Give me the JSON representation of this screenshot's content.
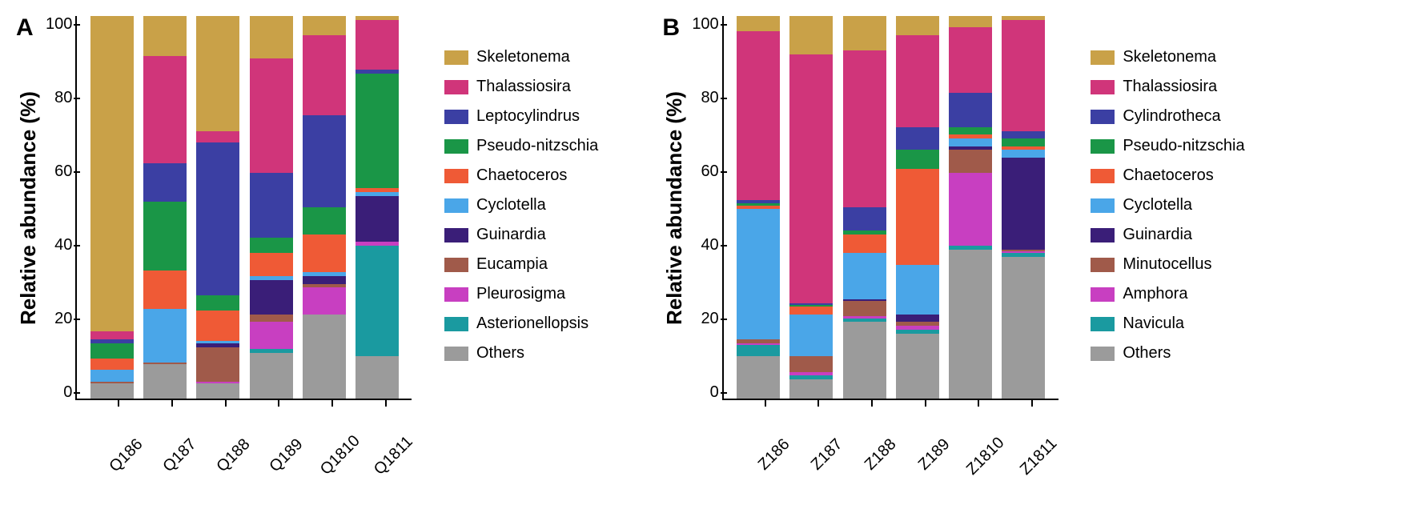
{
  "colors": {
    "Skeletonema": "#c9a148",
    "Thalassiosira": "#d0357a",
    "Leptocylindrus": "#3b3fa3",
    "Pseudo-nitzschia": "#1a9647",
    "Chaetoceros": "#ef5a36",
    "Cyclotella": "#4aa6e8",
    "Guinardia": "#3a1e78",
    "Eucampia": "#a05a4a",
    "Pleurosigma": "#c83fc1",
    "Asterionellopsis": "#1a9aa0",
    "Cylindrotheca": "#3b3fa3",
    "Minutocellus": "#a05a4a",
    "Amphora": "#c83fc1",
    "Navicula": "#1a9aa0",
    "Others": "#9b9b9b"
  },
  "y_label": "Relative abundance (%)",
  "y_ticks": [
    0,
    20,
    40,
    60,
    80,
    100
  ],
  "panels": {
    "A": {
      "letter": "A",
      "categories": [
        "Q186",
        "Q187",
        "Q188",
        "Q189",
        "Q1810",
        "Q1811"
      ],
      "legend_order": [
        "Skeletonema",
        "Thalassiosira",
        "Leptocylindrus",
        "Pseudo-nitzschia",
        "Chaetoceros",
        "Cyclotella",
        "Guinardia",
        "Eucampia",
        "Pleurosigma",
        "Asterionellopsis",
        "Others"
      ],
      "stack_order": [
        "Others",
        "Asterionellopsis",
        "Pleurosigma",
        "Eucampia",
        "Guinardia",
        "Cyclotella",
        "Chaetoceros",
        "Pseudo-nitzschia",
        "Leptocylindrus",
        "Thalassiosira",
        "Skeletonema"
      ],
      "data": {
        "Q186": {
          "Others": 4,
          "Asterionellopsis": 0,
          "Pleurosigma": 0,
          "Eucampia": 0.5,
          "Guinardia": 0,
          "Cyclotella": 3,
          "Chaetoceros": 3,
          "Pseudo-nitzschia": 4,
          "Leptocylindrus": 1,
          "Thalassiosira": 2,
          "Skeletonema": 82.5
        },
        "Q187": {
          "Others": 9,
          "Asterionellopsis": 0,
          "Pleurosigma": 0,
          "Eucampia": 0.5,
          "Guinardia": 0,
          "Cyclotella": 14,
          "Chaetoceros": 10,
          "Pseudo-nitzschia": 18,
          "Leptocylindrus": 10,
          "Thalassiosira": 28,
          "Skeletonema": 10.5
        },
        "Q188": {
          "Others": 4,
          "Asterionellopsis": 0,
          "Pleurosigma": 0.5,
          "Eucampia": 9,
          "Guinardia": 1,
          "Cyclotella": 0.5,
          "Chaetoceros": 8,
          "Pseudo-nitzschia": 4,
          "Leptocylindrus": 40,
          "Thalassiosira": 3,
          "Skeletonema": 30
        },
        "Q189": {
          "Others": 12,
          "Asterionellopsis": 1,
          "Pleurosigma": 7,
          "Eucampia": 2,
          "Guinardia": 9,
          "Cyclotella": 1,
          "Chaetoceros": 6,
          "Pseudo-nitzschia": 4,
          "Leptocylindrus": 17,
          "Thalassiosira": 30,
          "Skeletonema": 11
        },
        "Q1810": {
          "Others": 22,
          "Asterionellopsis": 0,
          "Pleurosigma": 7,
          "Eucampia": 1,
          "Guinardia": 2,
          "Cyclotella": 1,
          "Chaetoceros": 10,
          "Pseudo-nitzschia": 7,
          "Leptocylindrus": 24,
          "Thalassiosira": 21,
          "Skeletonema": 5
        },
        "Q1811": {
          "Others": 11,
          "Asterionellopsis": 29,
          "Pleurosigma": 1,
          "Eucampia": 0,
          "Guinardia": 12,
          "Cyclotella": 1,
          "Chaetoceros": 1,
          "Pseudo-nitzschia": 30,
          "Leptocylindrus": 1,
          "Thalassiosira": 13,
          "Skeletonema": 1
        }
      }
    },
    "B": {
      "letter": "B",
      "categories": [
        "Z186",
        "Z187",
        "Z188",
        "Z189",
        "Z1810",
        "Z1811"
      ],
      "legend_order": [
        "Skeletonema",
        "Thalassiosira",
        "Cylindrotheca",
        "Pseudo-nitzschia",
        "Chaetoceros",
        "Cyclotella",
        "Guinardia",
        "Minutocellus",
        "Amphora",
        "Navicula",
        "Others"
      ],
      "stack_order": [
        "Others",
        "Navicula",
        "Amphora",
        "Minutocellus",
        "Guinardia",
        "Cyclotella",
        "Chaetoceros",
        "Pseudo-nitzschia",
        "Cylindrotheca",
        "Thalassiosira",
        "Skeletonema"
      ],
      "data": {
        "Z186": {
          "Others": 11,
          "Navicula": 3,
          "Amphora": 0.5,
          "Minutocellus": 1,
          "Guinardia": 0,
          "Cyclotella": 34,
          "Chaetoceros": 1,
          "Pseudo-nitzschia": 0.5,
          "Cylindrotheca": 1,
          "Thalassiosira": 44,
          "Skeletonema": 4
        },
        "Z187": {
          "Others": 5,
          "Navicula": 1,
          "Amphora": 1,
          "Minutocellus": 4,
          "Guinardia": 0,
          "Cyclotella": 11,
          "Chaetoceros": 2,
          "Pseudo-nitzschia": 0.5,
          "Cylindrotheca": 0.5,
          "Thalassiosira": 65,
          "Skeletonema": 10
        },
        "Z188": {
          "Others": 20,
          "Navicula": 1,
          "Amphora": 0.5,
          "Minutocellus": 4,
          "Guinardia": 0.5,
          "Cyclotella": 12,
          "Chaetoceros": 5,
          "Pseudo-nitzschia": 1,
          "Cylindrotheca": 6,
          "Thalassiosira": 41,
          "Skeletonema": 9
        },
        "Z189": {
          "Others": 17,
          "Navicula": 1,
          "Amphora": 1,
          "Minutocellus": 1,
          "Guinardia": 2,
          "Cyclotella": 13,
          "Chaetoceros": 25,
          "Pseudo-nitzschia": 5,
          "Cylindrotheca": 6,
          "Thalassiosira": 24,
          "Skeletonema": 5
        },
        "Z1810": {
          "Others": 39,
          "Navicula": 1,
          "Amphora": 19,
          "Minutocellus": 6,
          "Guinardia": 1,
          "Cyclotella": 2,
          "Chaetoceros": 1,
          "Pseudo-nitzschia": 2,
          "Cylindrotheca": 9,
          "Thalassiosira": 17,
          "Skeletonema": 3
        },
        "Z1811": {
          "Others": 37,
          "Navicula": 1,
          "Amphora": 0.5,
          "Minutocellus": 0.5,
          "Guinardia": 24,
          "Cyclotella": 2,
          "Chaetoceros": 1,
          "Pseudo-nitzschia": 2,
          "Cylindrotheca": 2,
          "Thalassiosira": 29,
          "Skeletonema": 1
        }
      }
    }
  }
}
